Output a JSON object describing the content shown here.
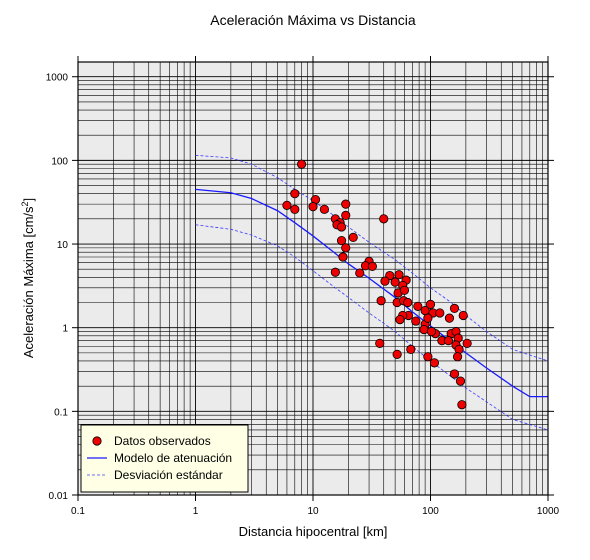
{
  "chart_data": {
    "type": "scatter",
    "title": "Aceleración Máxima vs Distancia",
    "xlabel": "Distancia hipocentral [km]",
    "ylabel": "Aceleración Máxima [cm/s",
    "ylabel_superscript": "2",
    "ylabel_suffix": "]",
    "xscale": "log",
    "yscale": "log",
    "xlim": [
      0.1,
      1000
    ],
    "ylim": [
      0.01,
      1500
    ],
    "x_ticks": [
      0.1,
      1,
      10,
      100,
      1000
    ],
    "x_tick_labels": [
      "0.1",
      "1",
      "10",
      "100",
      "1000"
    ],
    "y_ticks": [
      0.01,
      0.1,
      1,
      10,
      100,
      1000
    ],
    "y_tick_labels": [
      "0.01",
      "0.1",
      "1",
      "10",
      "100",
      "1000"
    ],
    "grid": true,
    "legend_position": "bottom-left",
    "colors": {
      "background": "#ebebeb",
      "points": "#ee0000",
      "point_edge": "#000000",
      "model": "#1a1aff",
      "std": "#3b3bff",
      "legend_bg": "#ffffe6"
    },
    "series": [
      {
        "name": "Datos observados",
        "kind": "points",
        "points": [
          [
            8,
            90
          ],
          [
            7,
            40
          ],
          [
            6,
            29
          ],
          [
            7,
            26
          ],
          [
            10.5,
            34
          ],
          [
            10,
            28
          ],
          [
            12.5,
            26
          ],
          [
            19,
            30
          ],
          [
            15.5,
            20
          ],
          [
            19,
            22
          ],
          [
            17,
            18
          ],
          [
            16,
            17
          ],
          [
            17.5,
            16
          ],
          [
            22,
            12
          ],
          [
            17.5,
            11
          ],
          [
            19,
            9
          ],
          [
            40,
            20
          ],
          [
            18,
            7
          ],
          [
            30,
            6.2
          ],
          [
            28,
            5.5
          ],
          [
            32,
            5.4
          ],
          [
            15.5,
            4.6
          ],
          [
            25,
            4.5
          ],
          [
            45,
            4.2
          ],
          [
            54,
            4.3
          ],
          [
            62,
            3.7
          ],
          [
            41,
            3.6
          ],
          [
            50,
            3.5
          ],
          [
            58,
            3.2
          ],
          [
            53,
            2.6
          ],
          [
            60,
            2.8
          ],
          [
            38,
            2.1
          ],
          [
            52,
            2.0
          ],
          [
            59,
            2.1
          ],
          [
            64,
            2.0
          ],
          [
            78,
            1.8
          ],
          [
            100,
            1.9
          ],
          [
            90,
            1.6
          ],
          [
            105,
            1.5
          ],
          [
            65,
            1.4
          ],
          [
            58,
            1.4
          ],
          [
            120,
            1.5
          ],
          [
            145,
            1.3
          ],
          [
            160,
            1.7
          ],
          [
            190,
            1.4
          ],
          [
            75,
            1.2
          ],
          [
            90,
            1.1
          ],
          [
            55,
            1.25
          ],
          [
            95,
            1.3
          ],
          [
            88,
            0.95
          ],
          [
            110,
            0.85
          ],
          [
            102,
            0.9
          ],
          [
            125,
            0.7
          ],
          [
            150,
            0.85
          ],
          [
            165,
            0.9
          ],
          [
            142,
            0.7
          ],
          [
            172,
            0.75
          ],
          [
            205,
            0.65
          ],
          [
            165,
            0.62
          ],
          [
            175,
            0.55
          ],
          [
            170,
            0.45
          ],
          [
            37,
            0.65
          ],
          [
            68,
            0.55
          ],
          [
            52,
            0.48
          ],
          [
            95,
            0.45
          ],
          [
            108,
            0.38
          ],
          [
            160,
            0.28
          ],
          [
            180,
            0.23
          ],
          [
            185,
            0.12
          ]
        ]
      },
      {
        "name": "Modelo de atenuación",
        "kind": "line",
        "style": "solid",
        "points": [
          [
            1,
            45
          ],
          [
            2,
            41
          ],
          [
            3,
            35
          ],
          [
            5,
            25
          ],
          [
            7,
            18
          ],
          [
            10,
            12.5
          ],
          [
            15,
            8
          ],
          [
            20,
            5.8
          ],
          [
            30,
            3.9
          ],
          [
            50,
            2.3
          ],
          [
            70,
            1.55
          ],
          [
            100,
            1.05
          ],
          [
            150,
            0.68
          ],
          [
            200,
            0.5
          ],
          [
            300,
            0.33
          ],
          [
            500,
            0.2
          ],
          [
            700,
            0.15
          ],
          [
            1000,
            0.15
          ]
        ]
      },
      {
        "name": "Desviación estándar",
        "kind": "line",
        "style": "dashed",
        "points": [
          [
            1,
            115
          ],
          [
            2,
            107
          ],
          [
            3,
            90
          ],
          [
            5,
            62
          ],
          [
            7,
            45
          ],
          [
            10,
            33
          ],
          [
            15,
            22
          ],
          [
            20,
            16
          ],
          [
            30,
            10.5
          ],
          [
            50,
            6.5
          ],
          [
            70,
            4.5
          ],
          [
            100,
            3.0
          ],
          [
            150,
            2.0
          ],
          [
            200,
            1.4
          ],
          [
            300,
            0.9
          ],
          [
            500,
            0.55
          ],
          [
            1000,
            0.4
          ]
        ]
      },
      {
        "kind": "line",
        "style": "dashed",
        "legend": false,
        "points": [
          [
            1,
            17
          ],
          [
            2,
            15
          ],
          [
            3,
            12.8
          ],
          [
            5,
            9.5
          ],
          [
            7,
            7
          ],
          [
            10,
            4.8
          ],
          [
            15,
            3.1
          ],
          [
            20,
            2.3
          ],
          [
            30,
            1.5
          ],
          [
            50,
            0.9
          ],
          [
            70,
            0.6
          ],
          [
            100,
            0.4
          ],
          [
            150,
            0.26
          ],
          [
            200,
            0.19
          ],
          [
            300,
            0.13
          ],
          [
            500,
            0.08
          ],
          [
            1000,
            0.06
          ]
        ]
      }
    ]
  }
}
